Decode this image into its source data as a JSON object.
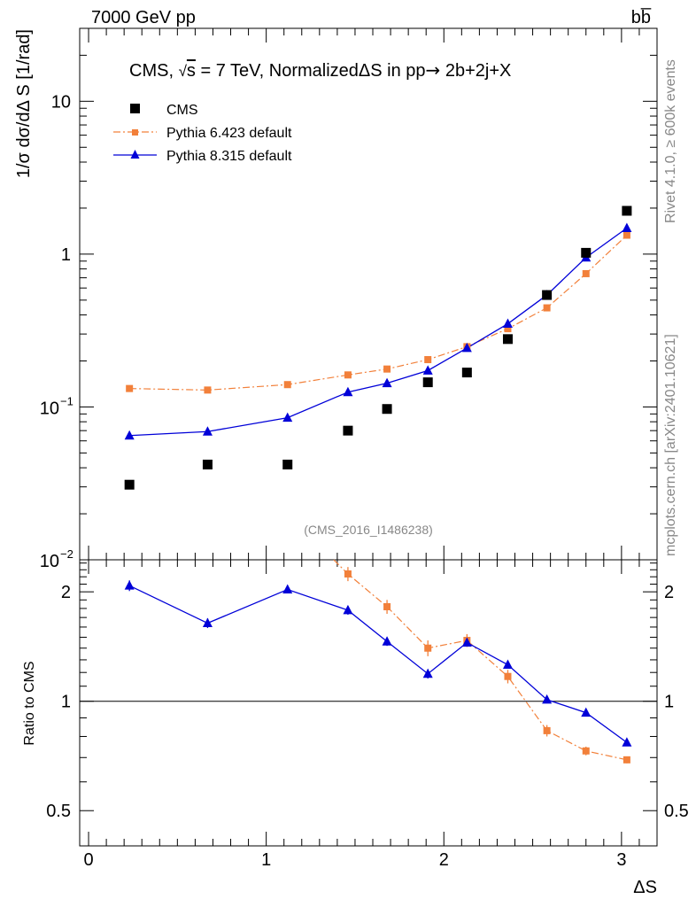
{
  "header": {
    "left": "7000 GeV pp",
    "right": "bb̅"
  },
  "side": {
    "rivet": "Rivet 4.1.0, ≥ 600k events",
    "mcplots": "mcplots.cern.ch [arXiv:2401.10621]"
  },
  "watermark": "(CMS_2016_I1486238)",
  "colors": {
    "cms": "#000000",
    "pythia6": "#f2803a",
    "pythia8": "#0000d8"
  },
  "chart_data": [
    {
      "type": "scatter",
      "title": "CMS, √s = 7 TeV, NormalizedΔS in pp→  2b+2j+X",
      "title_parts": {
        "a": "CMS, ",
        "sqrt": "√",
        "s": "s",
        "b": " = 7 TeV, NormalizedΔS in pp",
        "arrow": "→",
        "c": "  2b+2j+X"
      },
      "ylabel": "1/σ dσ/dΔ S [1/rad]",
      "yscale": "log",
      "ylim": [
        0.01,
        30
      ],
      "xlim": [
        -0.05,
        3.2
      ],
      "yticks": [
        {
          "v": 10,
          "label": "10"
        },
        {
          "v": 1,
          "label": "1"
        },
        {
          "v": 0.1,
          "label": "10",
          "exp": "−1"
        },
        {
          "v": 0.01,
          "label": "10",
          "exp": "−2"
        }
      ],
      "legend": [
        "CMS",
        "Pythia 6.423 default",
        "Pythia 8.315 default"
      ],
      "legend_placement": "top-left",
      "x": [
        0.23,
        0.67,
        1.12,
        1.46,
        1.68,
        1.91,
        2.13,
        2.36,
        2.58,
        2.8,
        3.03
      ],
      "series": [
        {
          "name": "CMS",
          "style": "markers",
          "values": [
            0.031,
            0.042,
            0.042,
            0.07,
            0.097,
            0.145,
            0.168,
            0.278,
            0.54,
            1.02,
            1.92
          ]
        },
        {
          "name": "Pythia 6.423 default",
          "style": "dashdot",
          "values": [
            0.132,
            0.129,
            0.14,
            0.162,
            0.177,
            0.204,
            0.248,
            0.325,
            0.445,
            0.745,
            1.33
          ]
        },
        {
          "name": "Pythia 8.315 default",
          "style": "line",
          "values": [
            0.065,
            0.069,
            0.085,
            0.125,
            0.143,
            0.173,
            0.243,
            0.35,
            0.54,
            0.95,
            1.48
          ]
        }
      ]
    },
    {
      "type": "line",
      "ylabel": "Ratio to CMS",
      "xlabel": "ΔS",
      "yscale": "log",
      "ylim": [
        0.4,
        2.45
      ],
      "xlim": [
        -0.05,
        3.2
      ],
      "xticks": [
        {
          "v": 0,
          "label": "0"
        },
        {
          "v": 1,
          "label": "1"
        },
        {
          "v": 2,
          "label": "2"
        },
        {
          "v": 3,
          "label": "3"
        }
      ],
      "yticks": [
        {
          "v": 0.5,
          "label": "0.5"
        },
        {
          "v": 1,
          "label": "1"
        },
        {
          "v": 2,
          "label": "2"
        }
      ],
      "reference_line": 1,
      "x": [
        0.23,
        0.67,
        1.12,
        1.46,
        1.68,
        1.91,
        2.13,
        2.36,
        2.58,
        2.8,
        3.03
      ],
      "series": [
        {
          "name": "Pythia 6.423 default",
          "style": "dashdot",
          "values": [
            null,
            null,
            null,
            2.24,
            1.82,
            1.4,
            1.47,
            1.17,
            0.83,
            0.73,
            0.69
          ],
          "errors": [
            null,
            null,
            null,
            0.1,
            0.08,
            0.07,
            0.06,
            0.05,
            0.03,
            0.02,
            0.015
          ]
        },
        {
          "name": "Pythia 8.315 default",
          "style": "line",
          "values": [
            2.08,
            1.64,
            2.03,
            1.78,
            1.46,
            1.19,
            1.45,
            1.26,
            1.01,
            0.93,
            0.77
          ],
          "errors": [
            0.07,
            0.05,
            0.05,
            0.05,
            0.04,
            0.035,
            0.03,
            0.025,
            0.015,
            0.01,
            0.01
          ]
        }
      ]
    }
  ]
}
